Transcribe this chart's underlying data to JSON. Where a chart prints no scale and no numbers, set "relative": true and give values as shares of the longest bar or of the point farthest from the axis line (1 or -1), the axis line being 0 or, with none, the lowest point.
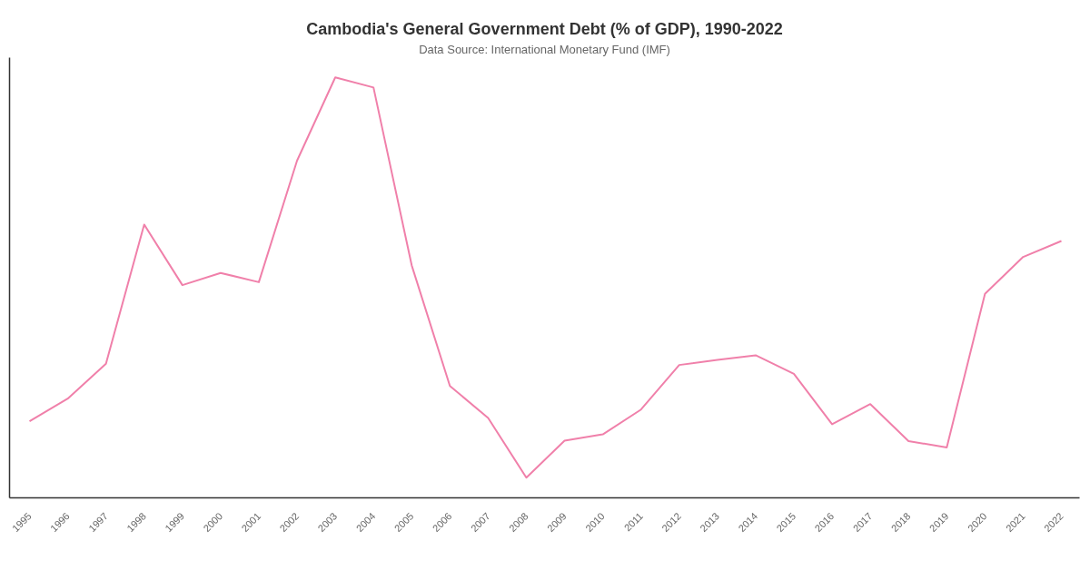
{
  "chart_data": {
    "type": "line",
    "title": "Cambodia's General Government Debt (% of GDP), 1990-2022",
    "subtitle": "Data Source: International Monetary Fund (IMF)",
    "categories": [
      "1995",
      "1996",
      "1997",
      "1998",
      "1999",
      "2000",
      "2001",
      "2002",
      "2003",
      "2004",
      "2005",
      "2006",
      "2007",
      "2008",
      "2009",
      "2010",
      "2011",
      "2012",
      "2013",
      "2014",
      "2015",
      "2016",
      "2017",
      "2018",
      "2019",
      "2020",
      "2021",
      "2022"
    ],
    "relative": true,
    "series": [
      {
        "color": "#f080aa",
        "values": [
          0.182,
          0.236,
          0.319,
          0.65,
          0.506,
          0.535,
          0.513,
          0.802,
          1,
          0.976,
          0.553,
          0.266,
          0.19,
          0.048,
          0.136,
          0.151,
          0.21,
          0.316,
          0.328,
          0.339,
          0.295,
          0.175,
          0.223,
          0.135,
          0.12,
          0.485,
          0.573,
          0.611
        ]
      }
    ],
    "tick_labels": "x",
    "grid": false
  }
}
